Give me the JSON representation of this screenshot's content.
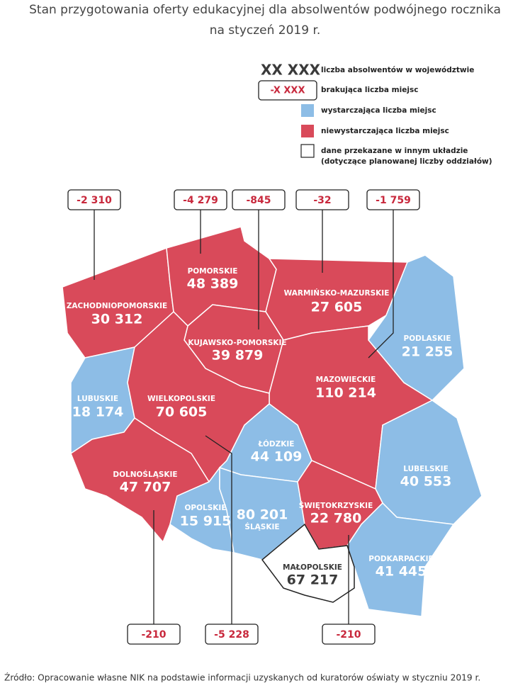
{
  "title": [
    "Stan przygotowania oferty edukacyjnej dla absolwentów podwójnego rocznika",
    "na styczeń 2019 r."
  ],
  "legend": [
    {
      "sample": "XX XXX",
      "text": [
        "liczba absolwentów w województwie"
      ]
    },
    {
      "sample": "-X XXX",
      "text": [
        "brakująca liczba miejsc"
      ]
    },
    {
      "color": "#8dbde6",
      "text": [
        "wystarczająca liczba miejsc"
      ]
    },
    {
      "color": "#d94a5a",
      "text": [
        "niewystarczająca liczba miejsc"
      ]
    },
    {
      "color": "#ffffff",
      "text": [
        "dane przekazane w innym układzie",
        "(dotyczące planowanej liczby oddziałów)"
      ]
    }
  ],
  "regions": [
    {
      "name": "ZACHODNIOPOMORSKIE",
      "graduates": "30 312",
      "shortfall": "-2 310",
      "color": "#d94a5a"
    },
    {
      "name": "POMORSKIE",
      "graduates": "48 389",
      "shortfall": "-4 279",
      "color": "#d94a5a"
    },
    {
      "name": "WARMIŃSKO-MAZURSKIE",
      "graduates": "27 605",
      "shortfall": "-32",
      "color": "#d94a5a"
    },
    {
      "name": "PODLASKIE",
      "graduates": "21 255",
      "color": "#8dbde6"
    },
    {
      "name": "KUJAWSKO-POMORSKIE",
      "graduates": "39 879",
      "shortfall": "-845",
      "color": "#d94a5a"
    },
    {
      "name": "MAZOWIECKIE",
      "graduates": "110 214",
      "shortfall": "-1 759",
      "color": "#d94a5a"
    },
    {
      "name": "LUBUSKIE",
      "graduates": "18 174",
      "color": "#8dbde6"
    },
    {
      "name": "WIELKOPOLSKIE",
      "graduates": "70 605",
      "shortfall": "-5 228",
      "color": "#d94a5a"
    },
    {
      "name": "ŁÓDZKIE",
      "graduates": "44 109",
      "color": "#8dbde6"
    },
    {
      "name": "LUBELSKIE",
      "graduates": "40 553",
      "color": "#8dbde6"
    },
    {
      "name": "DOLNOŚLĄSKIE",
      "graduates": "47 707",
      "shortfall": "-210",
      "color": "#d94a5a"
    },
    {
      "name": "OPOLSKIE",
      "graduates": "15 915",
      "color": "#8dbde6"
    },
    {
      "name": "ŚLĄSKIE",
      "graduates": "80 201",
      "color": "#8dbde6"
    },
    {
      "name": "ŚWIĘTOKRZYSKIE",
      "graduates": "22 780",
      "shortfall": "-210",
      "color": "#d94a5a"
    },
    {
      "name": "PODKARPACKIE",
      "graduates": "41 445",
      "color": "#8dbde6"
    },
    {
      "name": "MAŁOPOLSKIE",
      "graduates": "67 217",
      "color": "#ffffff"
    }
  ],
  "source": "Źródło: Opracowanie własne NIK na podstawie informacji uzyskanych od kuratorów oświaty w styczniu 2019 r."
}
